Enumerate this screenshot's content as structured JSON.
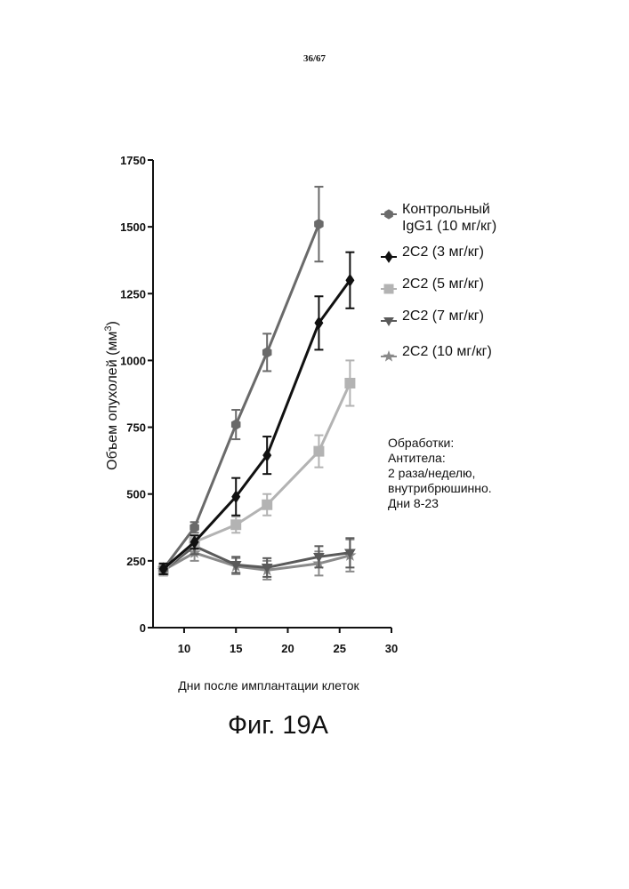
{
  "page_number": "36/67",
  "figure_caption": "Фиг. 19А",
  "notes": {
    "title": "Обработки:",
    "lines": [
      "Антитела:",
      "2 раза/неделю,",
      "внутрибрюшинно.",
      "Дни 8-23"
    ]
  },
  "chart_data": {
    "type": "line",
    "title": "",
    "xlabel": "Дни после имплантации клеток",
    "ylabel": "Объем опухолей (мм",
    "ylabel_sup": "3",
    "ylabel_close": ")",
    "xlim": [
      7,
      30
    ],
    "ylim": [
      0,
      1750
    ],
    "x_ticks": [
      10,
      15,
      20,
      25,
      30
    ],
    "x_tick_labels": [
      "10",
      "15",
      "20",
      "25",
      "30"
    ],
    "y_ticks": [
      0,
      250,
      500,
      750,
      1000,
      1250,
      1500,
      1750
    ],
    "y_tick_labels": [
      "0",
      "250",
      "500",
      "750",
      "1000",
      "1250",
      "1500",
      "1750"
    ],
    "legend_position": "right",
    "series": [
      {
        "name": "Контрольный IgG1 (10 мг/кг)",
        "label_line1": "Контрольный",
        "label_line2": "IgG1 (10 мг/кг)",
        "marker": "hexagon",
        "color": "#6a6a6a",
        "x": [
          8,
          11,
          15,
          18,
          23,
          26
        ],
        "y": [
          220,
          375,
          760,
          1030,
          1510,
          null
        ],
        "err": [
          20,
          20,
          55,
          70,
          140,
          null
        ]
      },
      {
        "name": "2C2 (3 мг/кг)",
        "label_line1": "2C2 (3 мг/кг)",
        "marker": "diamond",
        "color": "#111111",
        "x": [
          8,
          11,
          15,
          18,
          23,
          26
        ],
        "y": [
          220,
          320,
          490,
          645,
          1140,
          1300
        ],
        "err": [
          20,
          25,
          70,
          70,
          100,
          105
        ]
      },
      {
        "name": "2C2 (5 мг/кг)",
        "label_line1": "2C2 (5 мг/кг)",
        "marker": "square",
        "color": "#b3b3b3",
        "x": [
          8,
          11,
          15,
          18,
          23,
          26
        ],
        "y": [
          215,
          320,
          385,
          460,
          660,
          915
        ],
        "err": [
          20,
          25,
          30,
          40,
          60,
          85
        ]
      },
      {
        "name": "2C2 (7 мг/кг)",
        "label_line1": "2C2 (7 мг/кг)",
        "marker": "triangle-down",
        "color": "#5a5a5a",
        "x": [
          8,
          11,
          15,
          18,
          23,
          26
        ],
        "y": [
          215,
          305,
          235,
          225,
          265,
          280
        ],
        "err": [
          20,
          30,
          30,
          35,
          40,
          55
        ]
      },
      {
        "name": "2C2 (10 мг/кг)",
        "label_line1": "2C2 (10 мг/кг)",
        "marker": "star",
        "color": "#8a8a8a",
        "x": [
          8,
          11,
          15,
          18,
          23,
          26
        ],
        "y": [
          215,
          280,
          230,
          215,
          240,
          270
        ],
        "err": [
          15,
          30,
          30,
          35,
          45,
          60
        ]
      }
    ]
  }
}
